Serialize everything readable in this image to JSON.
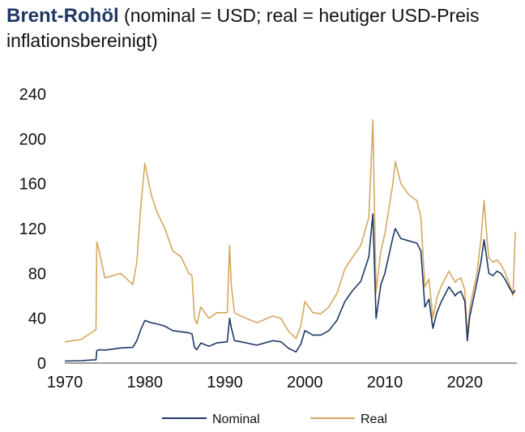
{
  "title": {
    "bold": "Brent-Rohöl",
    "rest": " (nominal = USD; real = heutiger USD-Preis inflationsbereinigt)"
  },
  "chart_data": {
    "type": "line",
    "title": "Brent-Rohöl (nominal = USD; real = heutiger USD-Preis inflationsbereinigt)",
    "xlabel": "",
    "ylabel": "",
    "xlim": [
      1970,
      2026.5
    ],
    "ylim": [
      0,
      240
    ],
    "x_ticks": [
      1970,
      1980,
      1990,
      2000,
      2010,
      2020
    ],
    "y_ticks": [
      0,
      40,
      80,
      120,
      160,
      200,
      240
    ],
    "grid": false,
    "legend_position": "bottom",
    "series": [
      {
        "name": "Nominal",
        "color": "#1f3864",
        "x": [
          1970,
          1972,
          1973.5,
          1973.9,
          1974.0,
          1974.3,
          1975,
          1977,
          1978.5,
          1979.0,
          1979.5,
          1980.0,
          1980.8,
          1981.5,
          1982.5,
          1983.5,
          1984.5,
          1985.5,
          1985.9,
          1986.2,
          1986.5,
          1987,
          1988,
          1989,
          1990.3,
          1990.6,
          1990.8,
          1991.2,
          1992,
          1994,
          1996,
          1997,
          1998,
          1998.9,
          1999.5,
          2000,
          2001,
          2002,
          2003,
          2004,
          2005,
          2006,
          2007,
          2008.0,
          2008.5,
          2008.9,
          2009.0,
          2009.5,
          2010,
          2011.0,
          2011.3,
          2012,
          2013,
          2014.0,
          2014.5,
          2015.0,
          2015.5,
          2016.0,
          2016.5,
          2017,
          2018.0,
          2018.8,
          2019.0,
          2019.5,
          2020.0,
          2020.3,
          2020.6,
          2021.0,
          2021.5,
          2022.0,
          2022.4,
          2022.8,
          2023.0,
          2023.5,
          2024.0,
          2024.5,
          2025.0,
          2025.5,
          2026.0,
          2026.3
        ],
        "values": [
          1.8,
          2.2,
          2.8,
          3.0,
          11,
          12,
          11.5,
          13.5,
          14,
          20,
          30,
          38,
          36,
          35,
          33,
          29,
          28,
          27,
          26,
          14,
          12,
          18,
          15,
          18,
          19,
          40,
          32,
          20,
          19,
          16,
          20,
          19,
          13,
          10,
          17,
          29,
          25,
          25,
          29,
          38,
          55,
          65,
          73,
          95,
          133,
          40,
          45,
          70,
          80,
          112,
          120,
          111,
          109,
          107,
          100,
          50,
          57,
          31,
          45,
          54,
          68,
          60,
          62,
          64,
          55,
          20,
          41,
          55,
          72,
          90,
          110,
          90,
          80,
          78,
          82,
          80,
          75,
          68,
          62,
          65
        ]
      },
      {
        "name": "Real",
        "color": "#d4a860",
        "x": [
          1970,
          1972,
          1973.5,
          1973.9,
          1974.0,
          1974.3,
          1975,
          1977,
          1978.5,
          1979.0,
          1979.5,
          1980.0,
          1980.8,
          1981.5,
          1982.5,
          1983.5,
          1984.5,
          1985.5,
          1985.9,
          1986.2,
          1986.5,
          1987,
          1988,
          1989,
          1990.3,
          1990.6,
          1990.8,
          1991.2,
          1992,
          1994,
          1996,
          1997,
          1998,
          1998.9,
          1999.5,
          2000,
          2001,
          2002,
          2003,
          2004,
          2005,
          2006,
          2007,
          2008.0,
          2008.5,
          2008.9,
          2009.0,
          2009.5,
          2010,
          2011.0,
          2011.3,
          2012,
          2013,
          2014.0,
          2014.5,
          2015.0,
          2015.5,
          2016.0,
          2016.5,
          2017,
          2018.0,
          2018.8,
          2019.0,
          2019.5,
          2020.0,
          2020.3,
          2020.6,
          2021.0,
          2021.5,
          2022.0,
          2022.4,
          2022.8,
          2023.0,
          2023.5,
          2024.0,
          2024.5,
          2025.0,
          2025.5,
          2026.0,
          2026.3
        ],
        "values": [
          19,
          21,
          28,
          30,
          108,
          100,
          76,
          80,
          70,
          90,
          140,
          178,
          150,
          135,
          120,
          100,
          95,
          80,
          78,
          40,
          35,
          50,
          40,
          45,
          45,
          105,
          70,
          45,
          42,
          36,
          42,
          40,
          28,
          22,
          33,
          55,
          45,
          44,
          50,
          62,
          84,
          95,
          105,
          130,
          217,
          62,
          70,
          100,
          115,
          160,
          180,
          160,
          150,
          145,
          130,
          68,
          75,
          40,
          58,
          68,
          82,
          72,
          74,
          76,
          65,
          24,
          48,
          63,
          80,
          110,
          145,
          108,
          94,
          90,
          92,
          88,
          81,
          72,
          60,
          117
        ]
      }
    ]
  }
}
